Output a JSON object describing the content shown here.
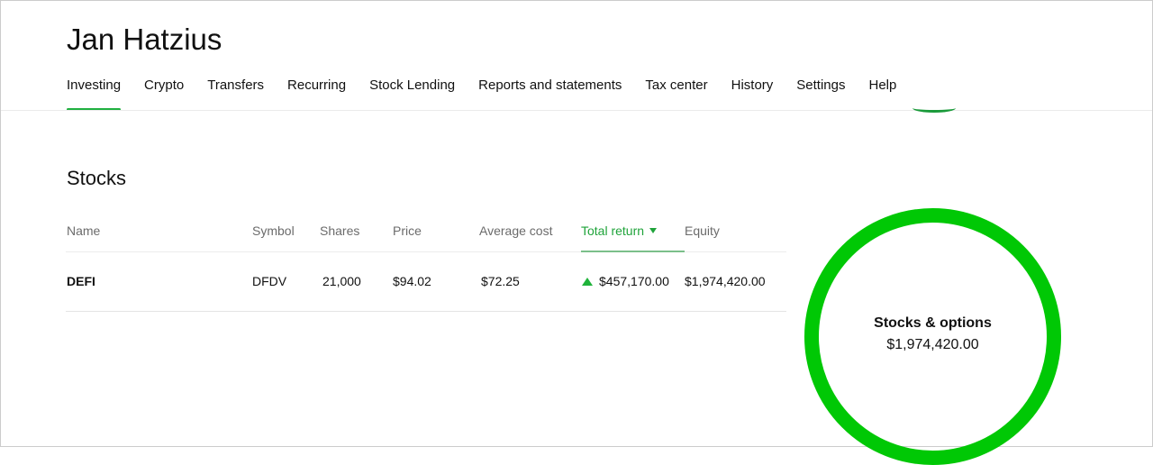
{
  "header": {
    "title": "Jan Hatzius"
  },
  "nav": [
    "Investing",
    "Crypto",
    "Transfers",
    "Recurring",
    "Stock Lending",
    "Reports and statements",
    "Tax center",
    "History",
    "Settings",
    "Help"
  ],
  "section": {
    "title": "Stocks"
  },
  "table": {
    "columns": [
      "Name",
      "Symbol",
      "Shares",
      "Price",
      "Average cost",
      "Total return",
      "Equity"
    ],
    "sorted_by": "Total return",
    "rows": [
      {
        "name": "DEFI",
        "symbol": "DFDV",
        "shares": "21,000",
        "price": "$94.02",
        "avg_cost": "$72.25",
        "total_return": "$457,170.00",
        "equity": "$1,974,420.00"
      }
    ]
  },
  "summary": {
    "label": "Stocks & options",
    "value": "$1,974,420.00"
  },
  "colors": {
    "accent": "#00c805",
    "positive": "#1fb33a"
  }
}
